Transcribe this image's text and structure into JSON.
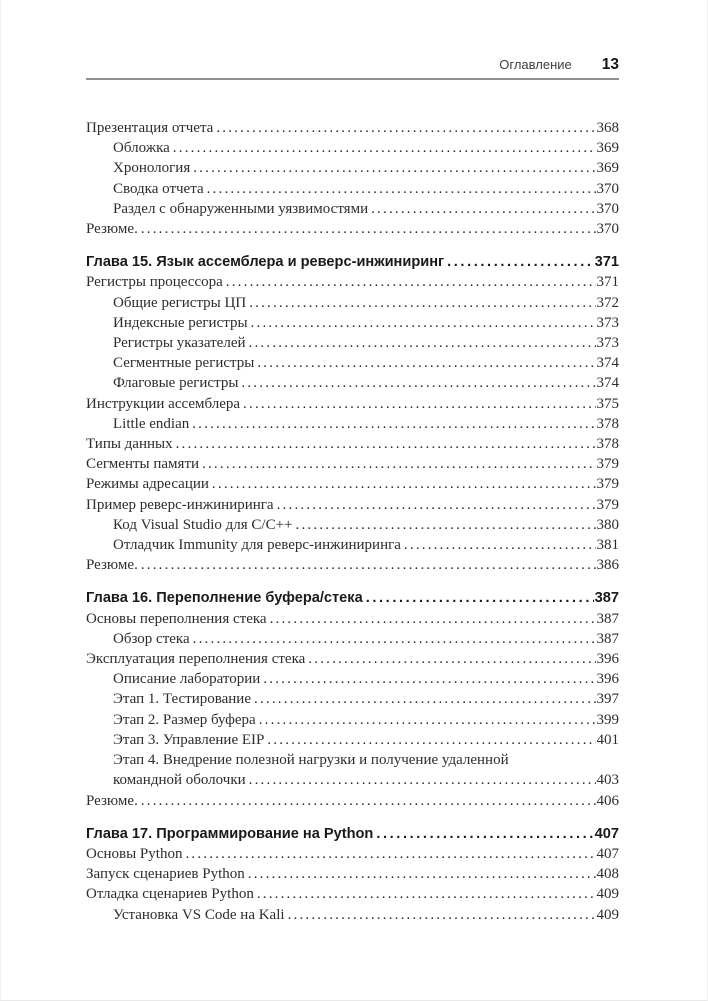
{
  "header": {
    "running_title": "Оглавление",
    "page_number": "13"
  },
  "colors": {
    "text": "#2d2d2d",
    "rule": "#8f8f8f",
    "background": "#ffffff"
  },
  "toc": [
    {
      "level": 0,
      "title": "Презентация отчета",
      "page": "368"
    },
    {
      "level": 1,
      "title": "Обложка",
      "page": "369"
    },
    {
      "level": 1,
      "title": "Хронология",
      "page": "369"
    },
    {
      "level": 1,
      "title": "Сводка отчета",
      "page": "370"
    },
    {
      "level": 1,
      "title": "Раздел с обнаруженными уязвимостями",
      "page": "370"
    },
    {
      "level": 0,
      "title": "Резюме.",
      "page": "370"
    },
    {
      "level": 0,
      "title": "Глава 15. Язык ассемблера и реверс-инжиниринг",
      "page": "371",
      "chapter": true
    },
    {
      "level": 0,
      "title": "Регистры процессора",
      "page": "371"
    },
    {
      "level": 1,
      "title": "Общие регистры ЦП",
      "page": "372"
    },
    {
      "level": 1,
      "title": "Индексные регистры",
      "page": "373"
    },
    {
      "level": 1,
      "title": "Регистры указателей",
      "page": "373"
    },
    {
      "level": 1,
      "title": "Сегментные регистры",
      "page": "374"
    },
    {
      "level": 1,
      "title": "Флаговые регистры",
      "page": "374"
    },
    {
      "level": 0,
      "title": "Инструкции ассемблера",
      "page": "375"
    },
    {
      "level": 1,
      "title": "Little endian",
      "page": "378"
    },
    {
      "level": 0,
      "title": "Типы данных",
      "page": "378"
    },
    {
      "level": 0,
      "title": "Сегменты памяти",
      "page": "379"
    },
    {
      "level": 0,
      "title": "Режимы адресации",
      "page": "379"
    },
    {
      "level": 0,
      "title": "Пример реверс-инжиниринга",
      "page": "379"
    },
    {
      "level": 1,
      "title": "Код Visual Studio для C/C++",
      "page": "380"
    },
    {
      "level": 1,
      "title": "Отладчик Immunity для реверс-инжиниринга",
      "page": "381"
    },
    {
      "level": 0,
      "title": "Резюме.",
      "page": "386"
    },
    {
      "level": 0,
      "title": "Глава 16. Переполнение буфера/стека",
      "page": "387",
      "chapter": true
    },
    {
      "level": 0,
      "title": "Основы переполнения стека",
      "page": "387"
    },
    {
      "level": 1,
      "title": "Обзор стека",
      "page": "387"
    },
    {
      "level": 0,
      "title": "Эксплуатация переполнения стека",
      "page": "396"
    },
    {
      "level": 1,
      "title": "Описание лаборатории",
      "page": "396"
    },
    {
      "level": 1,
      "title": "Этап 1. Тестирование",
      "page": "397"
    },
    {
      "level": 1,
      "title": "Этап 2. Размер буфера",
      "page": "399"
    },
    {
      "level": 1,
      "title": "Этап 3. Управление EIP",
      "page": "401"
    },
    {
      "level": 1,
      "title": "Этап 4. Внедрение полезной нагрузки и получение удаленной",
      "line2": "командной оболочки",
      "page": "403"
    },
    {
      "level": 0,
      "title": "Резюме.",
      "page": "406"
    },
    {
      "level": 0,
      "title": "Глава 17. Программирование на Python",
      "page": "407",
      "chapter": true
    },
    {
      "level": 0,
      "title": "Основы Python",
      "page": "407"
    },
    {
      "level": 0,
      "title": "Запуск сценариев Python",
      "page": "408"
    },
    {
      "level": 0,
      "title": "Отладка сценариев Python",
      "page": "409"
    },
    {
      "level": 1,
      "title": "Установка VS Code на Kali",
      "page": "409"
    }
  ]
}
